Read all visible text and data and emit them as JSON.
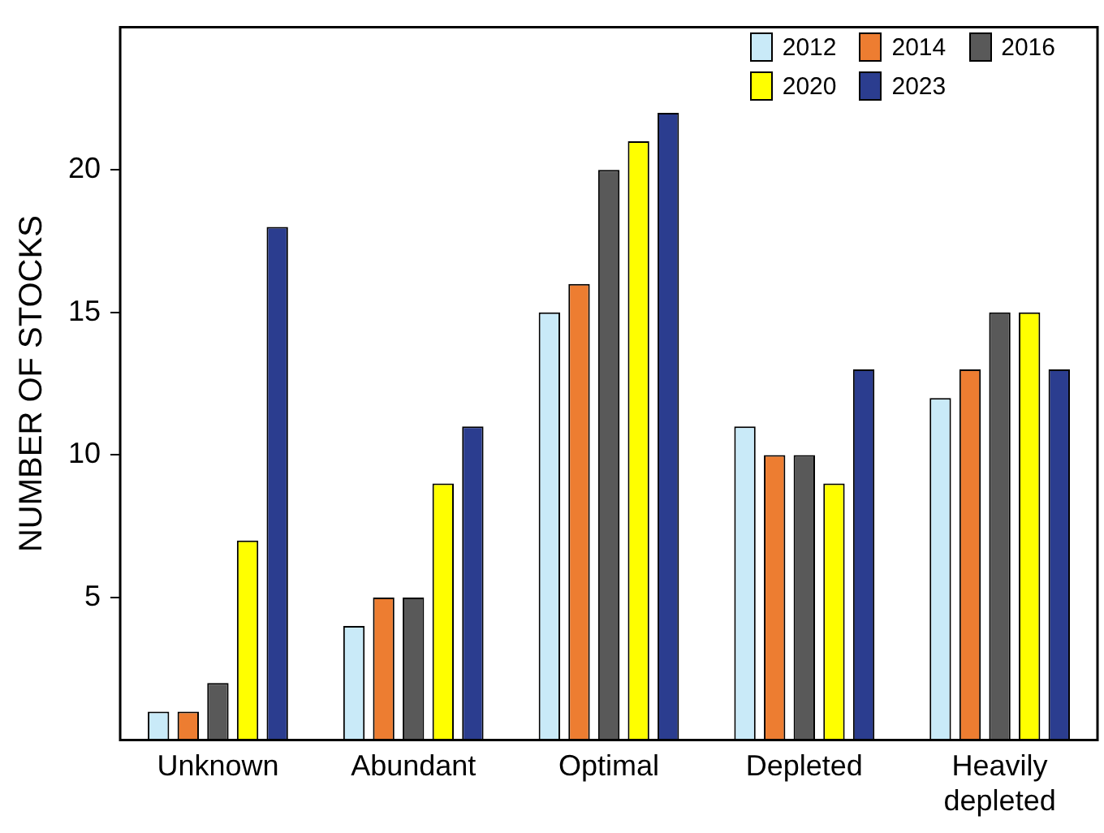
{
  "chart_data": {
    "type": "bar",
    "ylabel": "NUMBER OF STOCKS",
    "categories": [
      "Unknown",
      "Abundant",
      "Optimal",
      "Depleted",
      "Heavily depleted"
    ],
    "series": [
      {
        "name": "2012",
        "color": "#c9eaf8",
        "values": [
          1,
          4,
          15,
          11,
          12
        ]
      },
      {
        "name": "2014",
        "color": "#ed7d31",
        "values": [
          1,
          5,
          16,
          10,
          13
        ]
      },
      {
        "name": "2016",
        "color": "#595959",
        "values": [
          2,
          5,
          20,
          10,
          15
        ]
      },
      {
        "name": "2020",
        "color": "#ffff00",
        "values": [
          7,
          9,
          21,
          9,
          15
        ]
      },
      {
        "name": "2023",
        "color": "#2b3d8f",
        "values": [
          18,
          11,
          22,
          13,
          13
        ]
      }
    ],
    "ylim": [
      0,
      25
    ],
    "yticks": [
      5,
      10,
      15,
      20
    ],
    "grid": false,
    "legend": "top right"
  }
}
